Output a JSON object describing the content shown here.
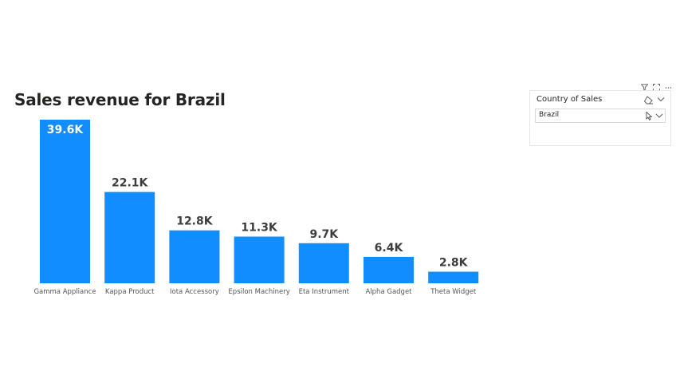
{
  "colors": {
    "bar": "#118DFF",
    "label_outside": "#3d3d3d",
    "label_inside": "#ffffff",
    "axis_text": "#555555"
  },
  "chart_data": {
    "type": "bar",
    "title": "Sales revenue for Brazil",
    "xlabel": "",
    "ylabel": "",
    "categories": [
      "Gamma Appliance",
      "Kappa Product",
      "Iota Accessory",
      "Epsilon Machinery",
      "Eta Instrument",
      "Alpha Gadget",
      "Theta Widget"
    ],
    "values": [
      39600,
      22100,
      12800,
      11300,
      9700,
      6400,
      2800
    ],
    "data_labels": [
      "39.6K",
      "22.1K",
      "12.8K",
      "11.3K",
      "9.7K",
      "6.4K",
      "2.8K"
    ],
    "ylim": [
      0,
      39600
    ],
    "grid": false,
    "legend": "none"
  },
  "slicer": {
    "title": "Country of Sales",
    "selected": "Brazil",
    "header_icons": [
      "filter-icon",
      "focus-mode-icon",
      "more-options-icon"
    ],
    "eraser_icon": "eraser-icon",
    "chevron_icon": "chevron-down-icon"
  }
}
